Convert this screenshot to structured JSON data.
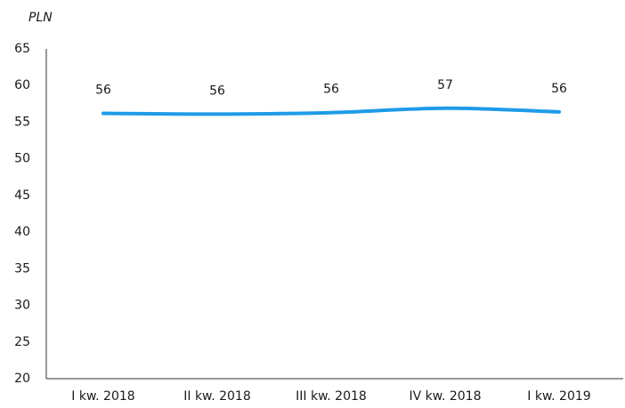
{
  "chart_data": {
    "type": "line",
    "y_label": "PLN",
    "categories": [
      "I kw. 2018",
      "II kw. 2018",
      "III kw. 2018",
      "IV kw. 2018",
      "I kw. 2019"
    ],
    "series": [
      {
        "name": null,
        "color": "#1e9be9",
        "values": [
          56.2,
          56.1,
          56.3,
          56.9,
          56.4
        ],
        "value_labels": [
          "56",
          "56",
          "56",
          "57",
          "56"
        ]
      }
    ],
    "ylim": [
      20,
      65
    ],
    "yticks": [
      20,
      25,
      30,
      35,
      40,
      45,
      50,
      55,
      60,
      65
    ],
    "grid": false
  }
}
